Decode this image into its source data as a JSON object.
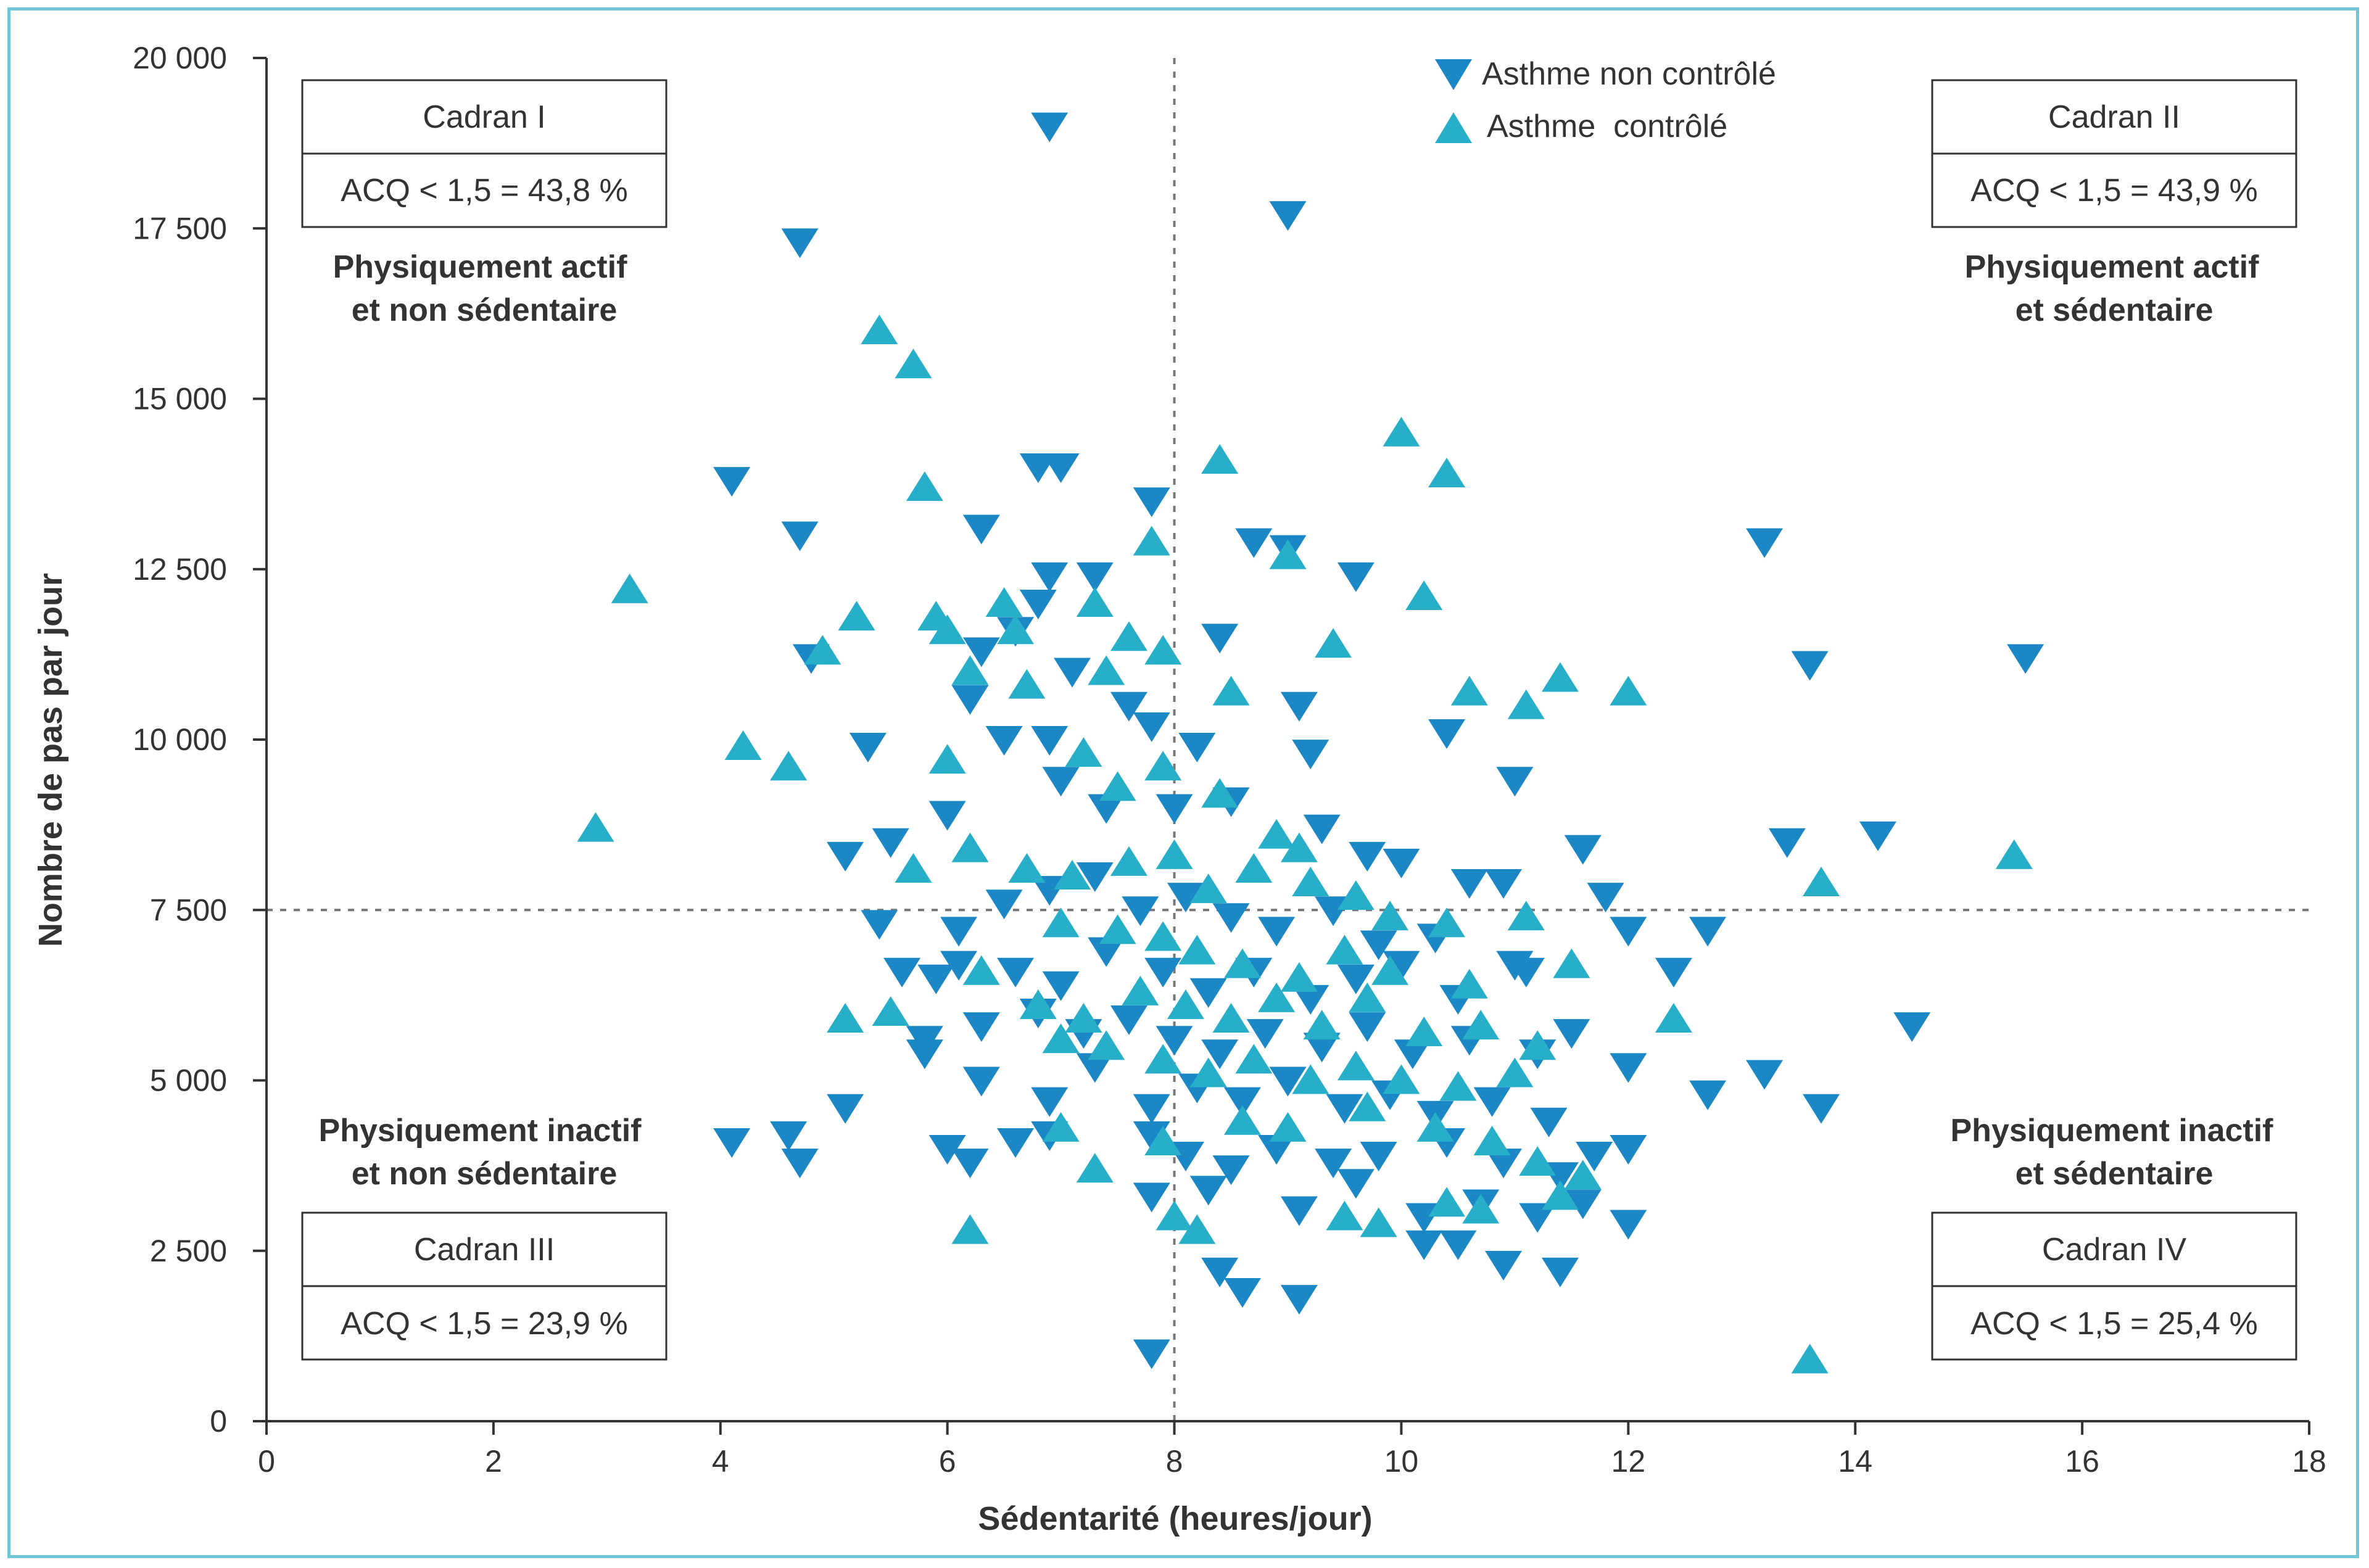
{
  "colors": {
    "uncontrolled": "#1b87c4",
    "controlled": "#27aec9",
    "frame": "#6ec6d8",
    "axis": "#333333",
    "divider": "#777777"
  },
  "chart_data": {
    "type": "scatter",
    "xlabel": "Sédentarité (heures/jour)",
    "ylabel": "Nombre de pas par jour",
    "xlim": [
      0,
      18
    ],
    "ylim": [
      0,
      20000
    ],
    "x_ticks": [
      0,
      2,
      4,
      6,
      8,
      10,
      12,
      14,
      16,
      18
    ],
    "y_ticks": [
      0,
      2500,
      5000,
      7500,
      10000,
      12500,
      15000,
      17500,
      20000
    ],
    "x_tick_labels": [
      "0",
      "2",
      "4",
      "6",
      "8",
      "10",
      "12",
      "14",
      "16",
      "18"
    ],
    "y_tick_labels": [
      "0",
      "2 500",
      "5 000",
      "7 500",
      "10 000",
      "12 500",
      "15 000",
      "17 500",
      "20 000"
    ],
    "divider_x": 8,
    "divider_y": 7500,
    "legend": [
      {
        "name": "Asthme non contrôlé",
        "marker": "triangle-down"
      },
      {
        "name": "Asthme  contrôlé",
        "marker": "triangle-up"
      }
    ],
    "quadrants": [
      {
        "title": "Cadran I",
        "stat": "ACQ < 1,5 = 43,8 %",
        "label_line1": "Physiquement actif",
        "label_line2": "et non sédentaire"
      },
      {
        "title": "Cadran II",
        "stat": "ACQ < 1,5 = 43,9 %",
        "label_line1": "Physiquement actif",
        "label_line2": "et sédentaire"
      },
      {
        "title": "Cadran III",
        "stat": "ACQ < 1,5 = 23,9 %",
        "label_line1": "Physiquement inactif",
        "label_line2": "et non sédentaire"
      },
      {
        "title": "Cadran IV",
        "stat": "ACQ < 1,5 = 25,4 %",
        "label_line1": "Physiquement inactif",
        "label_line2": "et sédentaire"
      }
    ],
    "series": [
      {
        "name": "Asthme non contrôlé",
        "marker": "triangle-down",
        "points": [
          [
            6.9,
            19000
          ],
          [
            4.7,
            17300
          ],
          [
            9.0,
            17700
          ],
          [
            4.1,
            13800
          ],
          [
            4.7,
            13000
          ],
          [
            6.8,
            14000
          ],
          [
            7.0,
            14000
          ],
          [
            7.8,
            13500
          ],
          [
            6.3,
            13100
          ],
          [
            6.9,
            12400
          ],
          [
            7.3,
            12400
          ],
          [
            8.7,
            12900
          ],
          [
            9.0,
            12800
          ],
          [
            9.6,
            12400
          ],
          [
            13.2,
            12900
          ],
          [
            6.8,
            12000
          ],
          [
            4.8,
            11200
          ],
          [
            6.6,
            11600
          ],
          [
            6.3,
            11300
          ],
          [
            7.1,
            11000
          ],
          [
            8.4,
            11500
          ],
          [
            13.6,
            11100
          ],
          [
            15.5,
            11200
          ],
          [
            5.3,
            9900
          ],
          [
            6.2,
            10600
          ],
          [
            6.5,
            10000
          ],
          [
            6.9,
            10000
          ],
          [
            7.6,
            10500
          ],
          [
            7.8,
            10200
          ],
          [
            8.2,
            9900
          ],
          [
            9.1,
            10500
          ],
          [
            9.2,
            9800
          ],
          [
            10.4,
            10100
          ],
          [
            11.0,
            9400
          ],
          [
            6.0,
            8900
          ],
          [
            5.5,
            8500
          ],
          [
            5.1,
            8300
          ],
          [
            7.0,
            9400
          ],
          [
            7.4,
            9000
          ],
          [
            8.0,
            9000
          ],
          [
            8.5,
            9100
          ],
          [
            9.3,
            8700
          ],
          [
            9.7,
            8300
          ],
          [
            10.0,
            8200
          ],
          [
            10.6,
            7900
          ],
          [
            10.9,
            7900
          ],
          [
            11.6,
            8400
          ],
          [
            11.8,
            7700
          ],
          [
            13.4,
            8500
          ],
          [
            14.2,
            8600
          ],
          [
            5.4,
            7300
          ],
          [
            6.1,
            7200
          ],
          [
            6.5,
            7600
          ],
          [
            6.9,
            7800
          ],
          [
            7.3,
            8000
          ],
          [
            7.7,
            7500
          ],
          [
            8.1,
            7700
          ],
          [
            8.5,
            7400
          ],
          [
            8.9,
            7200
          ],
          [
            9.4,
            7500
          ],
          [
            9.8,
            7000
          ],
          [
            10.3,
            7100
          ],
          [
            11.1,
            6600
          ],
          [
            12.0,
            7200
          ],
          [
            12.7,
            7200
          ],
          [
            5.6,
            6600
          ],
          [
            5.9,
            6500
          ],
          [
            6.1,
            6700
          ],
          [
            6.6,
            6600
          ],
          [
            7.0,
            6400
          ],
          [
            7.4,
            6900
          ],
          [
            7.9,
            6600
          ],
          [
            8.3,
            6300
          ],
          [
            8.7,
            6600
          ],
          [
            9.2,
            6200
          ],
          [
            9.6,
            6500
          ],
          [
            10.0,
            6700
          ],
          [
            10.5,
            6200
          ],
          [
            11.0,
            6700
          ],
          [
            12.4,
            6600
          ],
          [
            5.8,
            5600
          ],
          [
            6.3,
            5800
          ],
          [
            6.8,
            6000
          ],
          [
            7.2,
            5700
          ],
          [
            7.6,
            5900
          ],
          [
            8.0,
            5600
          ],
          [
            8.4,
            5400
          ],
          [
            8.8,
            5700
          ],
          [
            9.3,
            5500
          ],
          [
            9.7,
            5800
          ],
          [
            10.1,
            5400
          ],
          [
            10.6,
            5600
          ],
          [
            11.2,
            5400
          ],
          [
            11.5,
            5700
          ],
          [
            14.5,
            5800
          ],
          [
            5.8,
            5400
          ],
          [
            6.3,
            5000
          ],
          [
            6.9,
            4700
          ],
          [
            7.3,
            5200
          ],
          [
            7.8,
            4600
          ],
          [
            8.2,
            4900
          ],
          [
            8.6,
            4700
          ],
          [
            9.0,
            5000
          ],
          [
            9.5,
            4600
          ],
          [
            9.9,
            4800
          ],
          [
            10.3,
            4500
          ],
          [
            10.8,
            4700
          ],
          [
            11.3,
            4400
          ],
          [
            12.0,
            5200
          ],
          [
            12.7,
            4800
          ],
          [
            13.2,
            5100
          ],
          [
            13.7,
            4600
          ],
          [
            4.1,
            4100
          ],
          [
            4.6,
            4200
          ],
          [
            4.7,
            3800
          ],
          [
            5.1,
            4600
          ],
          [
            6.0,
            4000
          ],
          [
            6.2,
            3800
          ],
          [
            6.6,
            4100
          ],
          [
            6.9,
            4200
          ],
          [
            7.8,
            4200
          ],
          [
            8.1,
            3900
          ],
          [
            8.5,
            3700
          ],
          [
            8.9,
            4000
          ],
          [
            9.4,
            3800
          ],
          [
            9.8,
            3900
          ],
          [
            10.4,
            4100
          ],
          [
            10.9,
            3800
          ],
          [
            11.4,
            3600
          ],
          [
            11.7,
            3900
          ],
          [
            12.0,
            4000
          ],
          [
            7.8,
            3300
          ],
          [
            8.3,
            3400
          ],
          [
            9.1,
            3100
          ],
          [
            9.6,
            3500
          ],
          [
            10.2,
            3000
          ],
          [
            10.7,
            3200
          ],
          [
            11.2,
            3000
          ],
          [
            11.6,
            3200
          ],
          [
            8.4,
            2200
          ],
          [
            8.6,
            1900
          ],
          [
            9.1,
            1800
          ],
          [
            10.2,
            2600
          ],
          [
            10.5,
            2600
          ],
          [
            10.9,
            2300
          ],
          [
            11.4,
            2200
          ],
          [
            12.0,
            2900
          ],
          [
            7.8,
            1000
          ]
        ]
      },
      {
        "name": "Asthme  contrôlé",
        "marker": "triangle-up",
        "points": [
          [
            2.9,
            8700
          ],
          [
            3.2,
            12200
          ],
          [
            4.2,
            9900
          ],
          [
            4.6,
            9600
          ],
          [
            4.9,
            11300
          ],
          [
            5.2,
            11800
          ],
          [
            5.4,
            16000
          ],
          [
            5.7,
            15500
          ],
          [
            5.8,
            13700
          ],
          [
            5.9,
            11800
          ],
          [
            6.0,
            11600
          ],
          [
            6.0,
            9700
          ],
          [
            6.2,
            11000
          ],
          [
            6.5,
            12000
          ],
          [
            6.6,
            11600
          ],
          [
            6.7,
            10800
          ],
          [
            7.3,
            12000
          ],
          [
            7.4,
            11000
          ],
          [
            7.6,
            11500
          ],
          [
            7.8,
            12900
          ],
          [
            7.9,
            11300
          ],
          [
            8.4,
            14100
          ],
          [
            9.0,
            12700
          ],
          [
            10.0,
            14500
          ],
          [
            10.4,
            13900
          ],
          [
            10.2,
            12100
          ],
          [
            9.4,
            11400
          ],
          [
            8.5,
            10700
          ],
          [
            10.6,
            10700
          ],
          [
            11.1,
            10500
          ],
          [
            11.4,
            10900
          ],
          [
            12.0,
            10700
          ],
          [
            7.2,
            9800
          ],
          [
            7.5,
            9300
          ],
          [
            7.9,
            9600
          ],
          [
            8.4,
            9200
          ],
          [
            8.9,
            8600
          ],
          [
            9.1,
            8400
          ],
          [
            5.7,
            8100
          ],
          [
            6.2,
            8400
          ],
          [
            6.7,
            8100
          ],
          [
            7.1,
            8000
          ],
          [
            7.6,
            8200
          ],
          [
            8.0,
            8300
          ],
          [
            8.3,
            7800
          ],
          [
            8.7,
            8100
          ],
          [
            9.2,
            7900
          ],
          [
            9.6,
            7700
          ],
          [
            9.9,
            7400
          ],
          [
            10.4,
            7300
          ],
          [
            11.1,
            7400
          ],
          [
            13.7,
            7900
          ],
          [
            15.4,
            8300
          ],
          [
            7.0,
            7300
          ],
          [
            7.5,
            7200
          ],
          [
            7.9,
            7100
          ],
          [
            8.2,
            6900
          ],
          [
            8.6,
            6700
          ],
          [
            9.1,
            6500
          ],
          [
            9.5,
            6900
          ],
          [
            9.9,
            6600
          ],
          [
            10.6,
            6400
          ],
          [
            11.5,
            6700
          ],
          [
            5.5,
            6000
          ],
          [
            5.1,
            5900
          ],
          [
            6.3,
            6600
          ],
          [
            6.8,
            6100
          ],
          [
            7.2,
            5900
          ],
          [
            7.7,
            6300
          ],
          [
            8.1,
            6100
          ],
          [
            8.5,
            5900
          ],
          [
            8.9,
            6200
          ],
          [
            9.3,
            5800
          ],
          [
            9.7,
            6200
          ],
          [
            10.2,
            5700
          ],
          [
            10.7,
            5800
          ],
          [
            11.2,
            5500
          ],
          [
            12.4,
            5900
          ],
          [
            7.0,
            5600
          ],
          [
            7.4,
            5500
          ],
          [
            7.9,
            5300
          ],
          [
            8.3,
            5100
          ],
          [
            8.7,
            5300
          ],
          [
            9.2,
            5000
          ],
          [
            9.6,
            5200
          ],
          [
            10.0,
            5000
          ],
          [
            10.5,
            4900
          ],
          [
            11.0,
            5100
          ],
          [
            7.0,
            4300
          ],
          [
            7.9,
            4100
          ],
          [
            8.6,
            4400
          ],
          [
            9.0,
            4300
          ],
          [
            9.7,
            4600
          ],
          [
            10.3,
            4300
          ],
          [
            10.8,
            4100
          ],
          [
            11.2,
            3800
          ],
          [
            11.6,
            3600
          ],
          [
            7.3,
            3700
          ],
          [
            8.0,
            3000
          ],
          [
            8.2,
            2800
          ],
          [
            9.5,
            3000
          ],
          [
            9.8,
            2900
          ],
          [
            10.4,
            3200
          ],
          [
            10.7,
            3100
          ],
          [
            11.4,
            3300
          ],
          [
            6.2,
            2800
          ],
          [
            13.6,
            900
          ]
        ]
      }
    ]
  }
}
